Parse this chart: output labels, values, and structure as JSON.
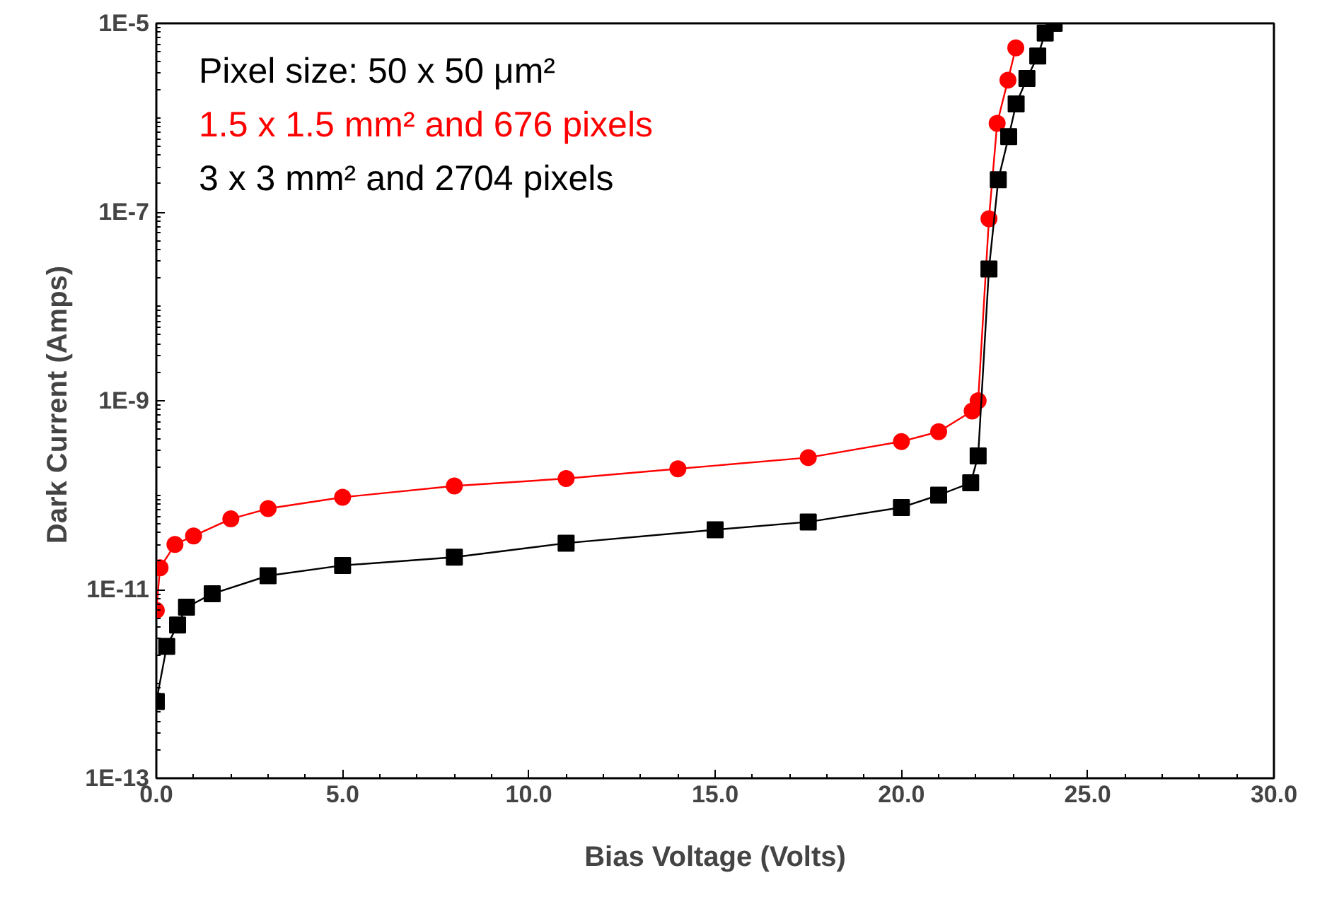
{
  "chart_data": {
    "type": "line",
    "xlabel": "Bias Voltage (Volts)",
    "ylabel": "Dark  Current (Amps)",
    "log": "y",
    "grid": false,
    "legend": "top left",
    "line_style": "solid",
    "xlim": [
      0,
      30
    ],
    "xticks": [
      {
        "value": 0,
        "label": "0.0"
      },
      {
        "value": 5,
        "label": "5.0"
      },
      {
        "value": 10,
        "label": "10.0"
      },
      {
        "value": 15,
        "label": "15.0"
      },
      {
        "value": 20,
        "label": "20.0"
      },
      {
        "value": 25,
        "label": "25.0"
      },
      {
        "value": 30,
        "label": "30.0"
      }
    ],
    "ylim": [
      1e-13,
      1e-05
    ],
    "yticks": [
      {
        "value": 1e-13,
        "label": "1E-13"
      },
      {
        "value": 1e-11,
        "label": "1E-11"
      },
      {
        "value": 1e-09,
        "label": "1E-9"
      },
      {
        "value": 1e-07,
        "label": "1E-7"
      },
      {
        "value": 1e-05,
        "label": "1E-5"
      }
    ],
    "annotations": [
      "Pixel size: 50 x 50 μm²"
    ],
    "series": [
      {
        "name": "1.5 x 1.5 mm² and 676 pixels",
        "color": "#ff0000",
        "marker": "circle",
        "x": [
          0,
          0.1,
          0.5,
          1,
          2,
          3,
          5,
          8,
          11,
          14,
          17.5,
          20,
          21,
          21.9,
          22.06,
          22.35,
          22.57,
          22.86,
          23.07
        ],
        "values": [
          6e-12,
          1.7e-11,
          3e-11,
          3.7e-11,
          5.6e-11,
          7.2e-11,
          9.5e-11,
          1.25e-10,
          1.5e-10,
          1.9e-10,
          2.5e-10,
          3.7e-10,
          4.7e-10,
          7.8e-10,
          1e-09,
          8.5e-08,
          8.7e-07,
          2.5e-06,
          5.5e-06
        ]
      },
      {
        "name": "3 x 3 mm² and 2704 pixels",
        "color": "#000000",
        "marker": "square",
        "x": [
          0,
          0.28,
          0.57,
          0.81,
          1.5,
          3,
          5,
          8,
          11,
          15,
          17.5,
          20,
          21,
          21.86,
          22.06,
          22.35,
          22.6,
          22.88,
          23.08,
          23.37,
          23.66,
          23.86,
          24.1
        ],
        "values": [
          6.5e-13,
          2.5e-12,
          4.2e-12,
          6.5e-12,
          9e-12,
          1.4e-11,
          1.8e-11,
          2.2e-11,
          3.1e-11,
          4.3e-11,
          5.2e-11,
          7.4e-11,
          1e-10,
          1.35e-10,
          2.6e-10,
          2.5e-08,
          2.2e-07,
          6.3e-07,
          1.4e-06,
          2.6e-06,
          4.5e-06,
          7.9e-06,
          1e-05
        ]
      }
    ]
  }
}
